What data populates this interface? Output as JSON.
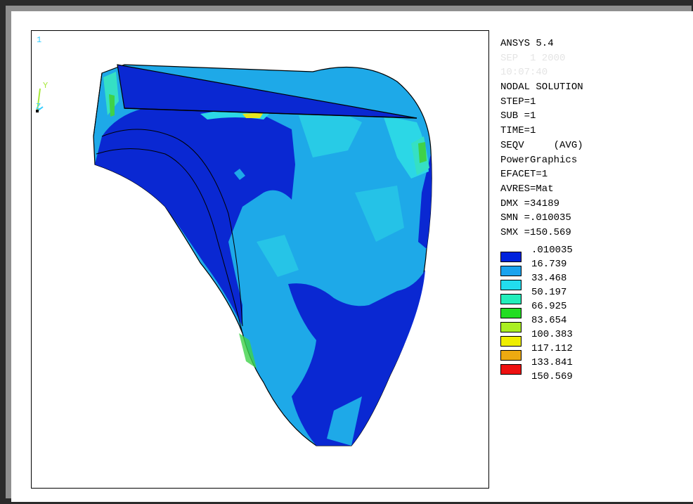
{
  "window_number": "1",
  "axis": {
    "y_label": "Y",
    "z_label": "Z",
    "y_color": "#a6e83a",
    "z_color": "#33ccff"
  },
  "info": {
    "lines": [
      "ANSYS 5.4",
      "NODAL SOLUTION",
      "STEP=1",
      "SUB =1",
      "TIME=1",
      "SEQV     (AVG)",
      "PowerGraphics",
      "EFACET=1",
      "AVRES=Mat",
      "DMX =34189",
      "SMN =.010035",
      "SMX =150.569"
    ],
    "faint_line_1": "SEP  1 2000",
    "faint_line_2": "10:07:40"
  },
  "legend": {
    "values": [
      ".010035",
      "16.739",
      "33.468",
      "50.197",
      "66.925",
      "83.654",
      "100.383",
      "117.112",
      "133.841",
      "150.569"
    ],
    "colors": [
      "#0022dd",
      "#1aa3ee",
      "#22ddee",
      "#22eebb",
      "#22dd22",
      "#aaee22",
      "#eeee00",
      "#eeaa11",
      "#ee1111"
    ]
  },
  "model_colors": {
    "dark_blue": "#0a28d2",
    "mid_blue": "#1e5fe0",
    "light_blue": "#1ea9e8",
    "cyan": "#2cd7e6",
    "aqua": "#35e0c4",
    "green": "#3fd24a",
    "yellow": "#e6e61e"
  }
}
